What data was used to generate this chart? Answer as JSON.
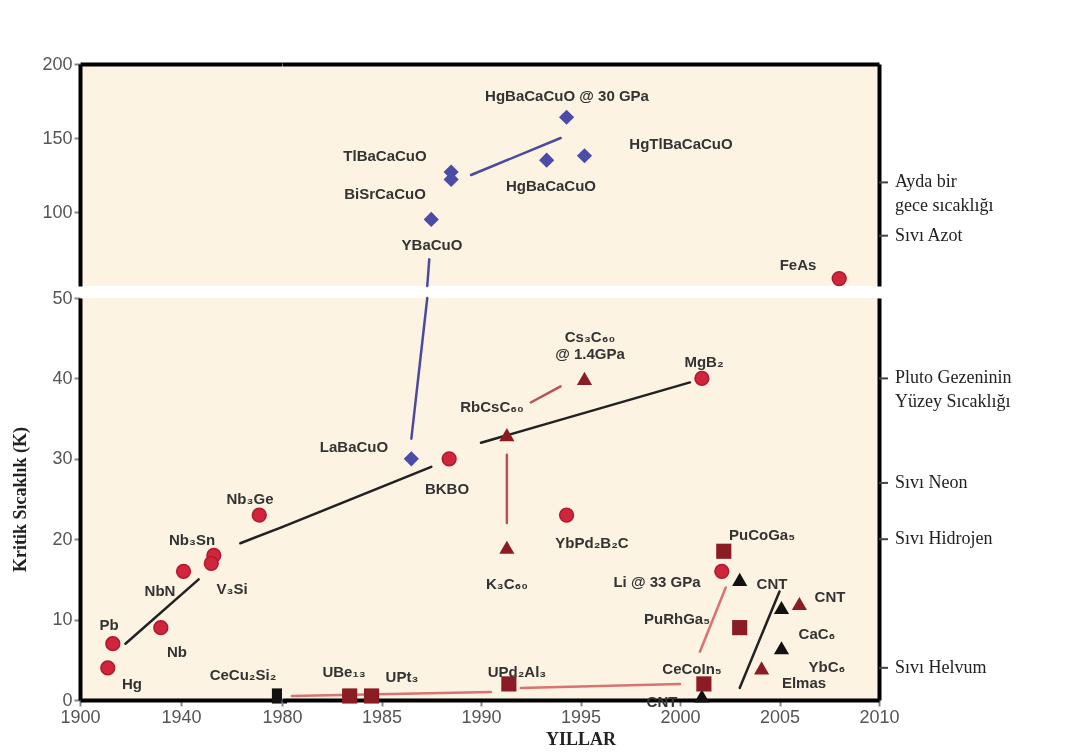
{
  "chart_data": [
    {
      "type": "scatter",
      "xlim": [
        1900,
        1980
      ],
      "ylim": [
        50,
        200
      ],
      "yticks": [
        100,
        150,
        200
      ],
      "tick_labels": "y"
    },
    {
      "type": "scatter",
      "xlim": [
        1980,
        2010
      ],
      "ylim": [
        50,
        200
      ],
      "tick_labels": false,
      "series": [
        {
          "type": "line",
          "color": "#4a4aa0",
          "line_style": "solid",
          "x": [
            1987.3,
            1987.4
          ],
          "values": [
            50,
            68
          ]
        },
        {
          "type": "line",
          "color": "#4a4aa0",
          "line_style": "solid",
          "x": [
            1989.5,
            1994
          ],
          "values": [
            125,
            150
          ]
        },
        {
          "marker": "diamond",
          "color": "#4b4ba8",
          "x": [
            1987.5,
            1988.5,
            1988.5,
            1993.3,
            1995.2,
            1994.3
          ],
          "values": [
            95,
            127,
            122,
            135,
            138,
            164
          ]
        },
        {
          "marker": "circle",
          "color": "#d0263c",
          "x": [
            2008
          ],
          "values": [
            55
          ]
        }
      ],
      "ref_lines": [
        {
          "axis": "y",
          "value": 120,
          "label": "Ayda bir\ngece sıcaklığı"
        },
        {
          "axis": "y",
          "value": 84,
          "label": "Sıvı Azot"
        }
      ],
      "annotations": [
        "YBaCuO",
        "BiSrCaCuO",
        "TlBaCaCuO",
        "HgBaCaCuO",
        "HgTlBaCaCuO",
        "HgBaCaCuO @ 30 GPa",
        "FeAs"
      ]
    },
    {
      "type": "scatter",
      "ylabel": "Kritik Sıcaklık (K)",
      "xlim": [
        1900,
        1980
      ],
      "xticks": [
        1900,
        1940
      ],
      "ylim": [
        0,
        50
      ],
      "yticks": [
        0,
        10,
        20,
        30,
        40,
        50
      ],
      "series": [
        {
          "type": "line",
          "color": "#222222",
          "line_style": "solid",
          "x": [
            1918,
            1947
          ],
          "values": [
            7,
            15
          ]
        },
        {
          "type": "line",
          "color": "#222222",
          "line_style": "solid",
          "x": [
            1963.5,
            1980
          ],
          "values": [
            19.5,
            21.5
          ]
        },
        {
          "marker": "circle",
          "color": "#d0263c",
          "x": [
            1911,
            1913,
            1932,
            1941,
            1953,
            1952,
            1971
          ],
          "values": [
            4,
            7,
            9,
            16,
            18,
            17,
            23
          ]
        },
        {
          "marker": "square",
          "color": "#111111",
          "x": [
            1979
          ],
          "values": [
            0.5
          ]
        }
      ],
      "annotations": [
        "Hg",
        "Pb",
        "Nb",
        "NbN",
        "Nb₃Sn",
        "V₃Si",
        "Nb₃Ge",
        "CeCu₂Si₂"
      ]
    },
    {
      "type": "scatter",
      "xlabel": "YILLAR",
      "xlim": [
        1980,
        2010
      ],
      "xticks": [
        1980,
        1985,
        1990,
        1995,
        2000,
        2005,
        2010
      ],
      "ylim": [
        0,
        50
      ],
      "tick_labels": "x",
      "series": [
        {
          "type": "line",
          "color": "#222222",
          "line_style": "solid",
          "x": [
            1980,
            1987.5
          ],
          "values": [
            21.5,
            29
          ]
        },
        {
          "type": "line",
          "color": "#222222",
          "line_style": "solid",
          "x": [
            1990,
            2000.5
          ],
          "values": [
            32,
            39.5
          ]
        },
        {
          "type": "line",
          "color": "#4a4aa0",
          "line_style": "solid",
          "x": [
            1986.5,
            1987.3
          ],
          "values": [
            32.5,
            50
          ]
        },
        {
          "type": "line",
          "color": "#b5525a",
          "line_style": "solid",
          "x": [
            1991.3,
            1991.3
          ],
          "values": [
            30.5,
            22
          ]
        },
        {
          "type": "line",
          "color": "#b5525a",
          "line_style": "solid",
          "x": [
            1992.5,
            1994
          ],
          "values": [
            37,
            39
          ]
        },
        {
          "type": "line",
          "color": "#d9736f",
          "line_style": "solid",
          "x": [
            1980.5,
            1990.5
          ],
          "values": [
            0.5,
            1
          ]
        },
        {
          "type": "line",
          "color": "#d9736f",
          "line_style": "solid",
          "x": [
            1992,
            2000
          ],
          "values": [
            1.5,
            2
          ]
        },
        {
          "type": "line",
          "color": "#d9736f",
          "line_style": "solid",
          "x": [
            2001,
            2002.3
          ],
          "values": [
            6,
            14
          ]
        },
        {
          "type": "line",
          "color": "#222222",
          "line_style": "solid",
          "x": [
            2003,
            2005
          ],
          "values": [
            1.5,
            13.5
          ]
        },
        {
          "marker": "circle",
          "color": "#d0263c",
          "x": [
            1988.4,
            1994.3,
            2001.1,
            2002.1
          ],
          "values": [
            30,
            23,
            40,
            16
          ]
        },
        {
          "marker": "diamond",
          "color": "#4b4ba8",
          "x": [
            1986.5
          ],
          "values": [
            30
          ]
        },
        {
          "marker": "triangle",
          "color": "#8c1c24",
          "x": [
            1991.3,
            1991.3,
            1995.2,
            2006,
            2004.1
          ],
          "values": [
            33,
            19,
            40,
            12,
            4
          ]
        },
        {
          "marker": "triangle",
          "color": "#111111",
          "x": [
            2003,
            2005.1,
            2005.1,
            2001.1
          ],
          "values": [
            15,
            11.5,
            6.5,
            0.5
          ]
        },
        {
          "marker": "square",
          "color": "#8c1c24",
          "x": [
            1983.4,
            1984.5,
            1991.4,
            2001.2,
            2002.2,
            2003
          ],
          "values": [
            0.5,
            0.5,
            2,
            2,
            18.5,
            9
          ]
        }
      ],
      "ref_lines": [
        {
          "axis": "y",
          "value": 40,
          "label": "Pluto Gezeninin\nYüzey Sıcaklığı"
        },
        {
          "axis": "y",
          "value": 27,
          "label": "Sıvı Neon"
        },
        {
          "axis": "y",
          "value": 20,
          "label": "Sıvı Hidrojen"
        },
        {
          "axis": "y",
          "value": 4,
          "label": "Sıvı Helvum"
        }
      ],
      "annotations": [
        "LaBaCuO",
        "BKBO",
        "RbCsC₆₀",
        "K₃C₆₀",
        "Cs₃C₆₀\n@ 1.4GPa",
        "MgB₂",
        "YbPd₂B₂C",
        "PuCoGa₅",
        "Li @ 33 GPa",
        "CNT",
        "CNT",
        "CaC₆",
        "YbC₆",
        "Elmas",
        "PuRhGa₅",
        "CeCoIn₅",
        "CNT",
        "UPd₂Al₃",
        "UBe₁₃",
        "UPt₃"
      ]
    }
  ]
}
